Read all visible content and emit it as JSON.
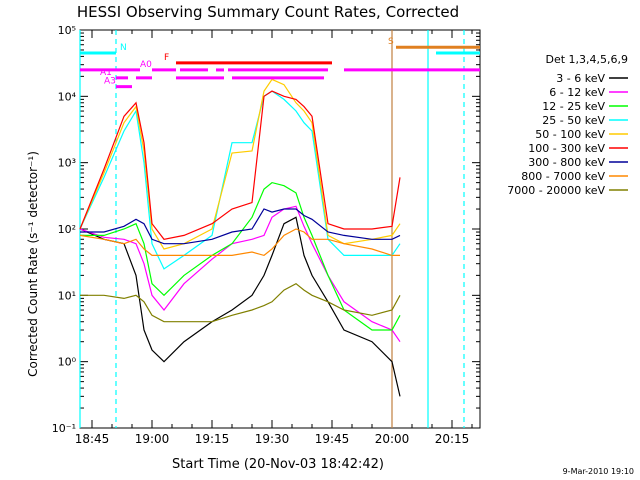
{
  "chart_data": {
    "type": "line",
    "title": "HESSI Observing Summary Count Rates, Corrected",
    "xlabel": "Start Time (20-Nov-03 18:42:42)",
    "ylabel": "Corrected Count Rate (s⁻¹ detector⁻¹)",
    "y_scale": "log",
    "xlim": [
      "18:42",
      "20:22"
    ],
    "ylim": [
      0.1,
      100000
    ],
    "x_ticks": [
      "18:45",
      "19:00",
      "19:15",
      "19:30",
      "19:45",
      "20:00",
      "20:15"
    ],
    "y_ticks": [
      "10⁻¹",
      "10⁰",
      "10¹",
      "10²",
      "10³",
      "10⁴",
      "10⁵"
    ],
    "legend_title": "Det 1,3,4,5,6,9",
    "legend_position": "right",
    "series": [
      {
        "name": "3 - 6 keV",
        "color": "#000000",
        "x": [
          "18:42",
          "18:48",
          "18:53",
          "18:56",
          "18:58",
          "19:00",
          "19:03",
          "19:08",
          "19:15",
          "19:20",
          "19:25",
          "19:28",
          "19:30",
          "19:33",
          "19:36",
          "19:38",
          "19:40",
          "19:44",
          "19:48",
          "19:55",
          "20:00",
          "20:02"
        ],
        "y": [
          100,
          70,
          60,
          20,
          3,
          1.5,
          1,
          2,
          4,
          6,
          10,
          20,
          40,
          120,
          150,
          40,
          20,
          8,
          3,
          2,
          1,
          0.3
        ]
      },
      {
        "name": "6 - 12 keV",
        "color": "#ff00ff",
        "x": [
          "18:42",
          "18:48",
          "18:53",
          "18:56",
          "18:58",
          "19:00",
          "19:03",
          "19:08",
          "19:15",
          "19:20",
          "19:25",
          "19:28",
          "19:30",
          "19:33",
          "19:36",
          "19:38",
          "19:40",
          "19:44",
          "19:48",
          "19:55",
          "20:00",
          "20:02"
        ],
        "y": [
          100,
          75,
          70,
          60,
          30,
          10,
          6,
          15,
          35,
          60,
          70,
          80,
          150,
          200,
          220,
          110,
          60,
          20,
          8,
          4,
          3,
          2
        ]
      },
      {
        "name": "12 - 25 keV",
        "color": "#00ff00",
        "x": [
          "18:42",
          "18:48",
          "18:53",
          "18:56",
          "18:58",
          "19:00",
          "19:03",
          "19:08",
          "19:15",
          "19:20",
          "19:25",
          "19:28",
          "19:30",
          "19:33",
          "19:36",
          "19:38",
          "19:40",
          "19:44",
          "19:48",
          "19:55",
          "20:00",
          "20:02"
        ],
        "y": [
          80,
          80,
          100,
          120,
          60,
          15,
          10,
          20,
          40,
          60,
          150,
          400,
          500,
          450,
          350,
          150,
          80,
          20,
          6,
          3,
          3,
          5
        ]
      },
      {
        "name": "25 - 50 keV",
        "color": "#00ffff",
        "x": [
          "18:42",
          "18:48",
          "18:53",
          "18:56",
          "18:58",
          "19:00",
          "19:03",
          "19:08",
          "19:15",
          "19:20",
          "19:25",
          "19:28",
          "19:30",
          "19:33",
          "19:36",
          "19:38",
          "19:40",
          "19:44",
          "19:48",
          "19:55",
          "20:00",
          "20:02"
        ],
        "y": [
          100,
          600,
          3000,
          6000,
          1000,
          60,
          25,
          40,
          80,
          2000,
          2000,
          10000,
          12000,
          9000,
          6000,
          4000,
          3000,
          70,
          40,
          40,
          40,
          60
        ]
      },
      {
        "name": "50 - 100 keV",
        "color": "#ffcc00",
        "x": [
          "18:42",
          "18:48",
          "18:53",
          "18:56",
          "18:58",
          "19:00",
          "19:03",
          "19:08",
          "19:15",
          "19:20",
          "19:25",
          "19:28",
          "19:30",
          "19:33",
          "19:36",
          "19:38",
          "19:40",
          "19:44",
          "19:48",
          "19:55",
          "20:00",
          "20:02"
        ],
        "y": [
          100,
          700,
          4000,
          7000,
          1500,
          100,
          50,
          60,
          100,
          1400,
          1500,
          12000,
          18000,
          15000,
          8000,
          6000,
          4000,
          80,
          60,
          70,
          80,
          120
        ]
      },
      {
        "name": "100 - 300 keV",
        "color": "#ff0000",
        "x": [
          "18:42",
          "18:48",
          "18:53",
          "18:56",
          "18:58",
          "19:00",
          "19:03",
          "19:08",
          "19:15",
          "19:20",
          "19:25",
          "19:28",
          "19:30",
          "19:33",
          "19:36",
          "19:38",
          "19:40",
          "19:44",
          "19:48",
          "19:55",
          "20:00",
          "20:02"
        ],
        "y": [
          100,
          800,
          5000,
          8000,
          2000,
          120,
          70,
          80,
          120,
          200,
          250,
          10000,
          12000,
          10000,
          9000,
          7000,
          5000,
          120,
          100,
          100,
          110,
          600
        ]
      },
      {
        "name": "300 - 800 keV",
        "color": "#000099",
        "x": [
          "18:42",
          "18:48",
          "18:53",
          "18:56",
          "18:58",
          "19:00",
          "19:03",
          "19:08",
          "19:15",
          "19:20",
          "19:25",
          "19:28",
          "19:30",
          "19:33",
          "19:36",
          "19:38",
          "19:40",
          "19:44",
          "19:48",
          "19:55",
          "20:00",
          "20:02"
        ],
        "y": [
          90,
          90,
          110,
          140,
          120,
          70,
          60,
          60,
          70,
          90,
          100,
          200,
          180,
          200,
          200,
          160,
          140,
          90,
          80,
          70,
          70,
          80
        ]
      },
      {
        "name": "800 - 7000 keV",
        "color": "#ff8800",
        "x": [
          "18:42",
          "18:48",
          "18:53",
          "18:56",
          "18:58",
          "19:00",
          "19:03",
          "19:08",
          "19:15",
          "19:20",
          "19:25",
          "19:28",
          "19:30",
          "19:33",
          "19:36",
          "19:38",
          "19:40",
          "19:44",
          "19:48",
          "19:55",
          "20:00",
          "20:02"
        ],
        "y": [
          80,
          70,
          60,
          70,
          50,
          40,
          40,
          40,
          40,
          40,
          45,
          40,
          50,
          80,
          100,
          90,
          70,
          70,
          60,
          50,
          40,
          40
        ]
      },
      {
        "name": "7000 - 20000 keV",
        "color": "#808000",
        "x": [
          "18:42",
          "18:48",
          "18:53",
          "18:56",
          "18:58",
          "19:00",
          "19:03",
          "19:08",
          "19:15",
          "19:20",
          "19:25",
          "19:28",
          "19:30",
          "19:33",
          "19:36",
          "19:38",
          "19:40",
          "19:44",
          "19:48",
          "19:55",
          "20:00",
          "20:02"
        ],
        "y": [
          10,
          10,
          9,
          10,
          8,
          5,
          4,
          4,
          4,
          5,
          6,
          7,
          8,
          12,
          15,
          12,
          10,
          8,
          6,
          5,
          6,
          10
        ]
      }
    ],
    "flags": [
      {
        "label": "N",
        "color": "#00ffff",
        "y": 45000,
        "segments": [
          [
            "18:42",
            "18:51"
          ],
          [
            "20:11",
            "20:22"
          ]
        ],
        "label_at": "18:52"
      },
      {
        "label": "F",
        "color": "#ff0000",
        "y": 32000,
        "segments": [
          [
            "19:06",
            "19:45"
          ]
        ],
        "label_at": "19:03"
      },
      {
        "label": "A0",
        "color": "#ff00ff",
        "y": 25000,
        "segments": [
          [
            "18:42",
            "18:57"
          ],
          [
            "19:00",
            "19:06"
          ],
          [
            "19:07",
            "19:14"
          ],
          [
            "19:16",
            "19:18"
          ],
          [
            "19:19",
            "19:44"
          ],
          [
            "19:48",
            "20:22"
          ]
        ],
        "label_at": "18:57"
      },
      {
        "label": "A1",
        "color": "#ff00ff",
        "y": 19000,
        "segments": [
          [
            "18:51",
            "18:54"
          ],
          [
            "18:56",
            "19:00"
          ],
          [
            "19:06",
            "19:18"
          ],
          [
            "19:20",
            "19:43"
          ]
        ],
        "label_at": "18:47"
      },
      {
        "label": "A3",
        "color": "#ff00ff",
        "y": 14000,
        "segments": [
          [
            "18:51",
            "18:55"
          ]
        ],
        "label_at": "18:48"
      },
      {
        "label": "S",
        "color": "#e08020",
        "y": 55000,
        "segments": [
          [
            "20:01",
            "20:22"
          ]
        ],
        "label_at": "19:59"
      }
    ],
    "vertical_markers": [
      {
        "x": "18:42",
        "color": "#00ffff",
        "style": "solid"
      },
      {
        "x": "18:51",
        "color": "#00ffff",
        "style": "dashed"
      },
      {
        "x": "20:00",
        "color": "#c08040",
        "style": "solid"
      },
      {
        "x": "20:09",
        "color": "#00ffff",
        "style": "solid"
      },
      {
        "x": "20:18",
        "color": "#00ffff",
        "style": "dashed"
      }
    ]
  },
  "footer": {
    "date_stamp": "9-Mar-2010 19:10"
  }
}
